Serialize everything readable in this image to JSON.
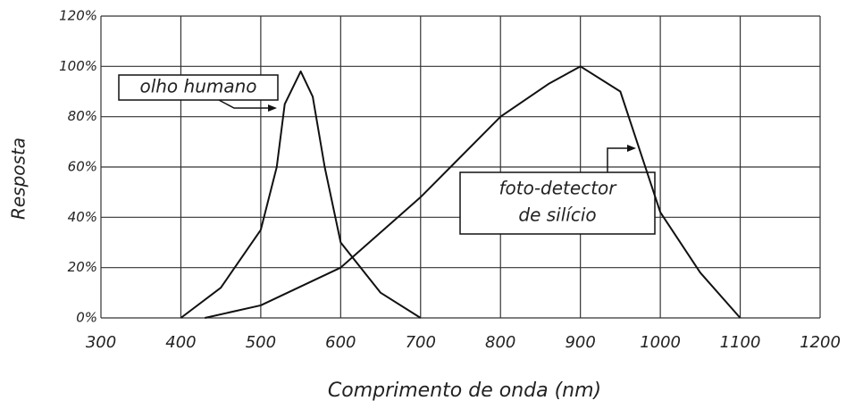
{
  "chart_data": {
    "type": "line",
    "xlabel": "Comprimento de onda (nm)",
    "ylabel": "Resposta",
    "xlim": [
      300,
      1200
    ],
    "xticks": [
      300,
      400,
      500,
      600,
      700,
      800,
      900,
      1000,
      1100,
      1200
    ],
    "ylim": [
      0,
      120
    ],
    "yticks": [
      {
        "value": 0,
        "label": "0%"
      },
      {
        "value": 20,
        "label": "20%"
      },
      {
        "value": 40,
        "label": "40%"
      },
      {
        "value": 60,
        "label": "60%"
      },
      {
        "value": 80,
        "label": "80%"
      },
      {
        "value": 100,
        "label": "100%"
      },
      {
        "value": 120,
        "label": "120%"
      }
    ],
    "grid": true,
    "series": [
      {
        "color": "#111",
        "x": [
          400,
          450,
          500,
          520,
          530,
          550,
          565,
          580,
          600,
          650,
          700
        ],
        "values": [
          0,
          12,
          35,
          60,
          85,
          98,
          88,
          60,
          30,
          10,
          0
        ]
      },
      {
        "color": "#111",
        "x": [
          430,
          500,
          600,
          700,
          800,
          860,
          900,
          950,
          1000,
          1050,
          1100
        ],
        "values": [
          0,
          5,
          20,
          48,
          80,
          93,
          100,
          90,
          42,
          18,
          0
        ]
      }
    ],
    "annotations": [
      {
        "text": [
          "olho humano"
        ]
      },
      {
        "text": [
          "foto-detector",
          "de silício"
        ]
      }
    ]
  }
}
